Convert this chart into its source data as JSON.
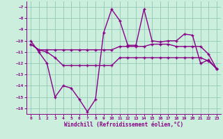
{
  "xlabel": "Windchill (Refroidissement éolien,°C)",
  "x": [
    0,
    1,
    2,
    3,
    4,
    5,
    6,
    7,
    8,
    9,
    10,
    11,
    12,
    13,
    14,
    15,
    16,
    17,
    18,
    19,
    20,
    21,
    22,
    23
  ],
  "line1": [
    -10,
    -11,
    -12,
    -15,
    -14,
    -14.2,
    -15.2,
    -16.3,
    -15.2,
    -9.3,
    -7.2,
    -8.2,
    -10.4,
    -10.4,
    -7.2,
    -10.0,
    -10.1,
    -10.0,
    -10.0,
    -9.4,
    -9.5,
    -12.0,
    -11.7,
    -12.5
  ],
  "line2": [
    -10.3,
    -10.8,
    -10.8,
    -10.8,
    -10.8,
    -10.8,
    -10.8,
    -10.8,
    -10.8,
    -10.8,
    -10.8,
    -10.5,
    -10.5,
    -10.5,
    -10.5,
    -10.3,
    -10.3,
    -10.3,
    -10.5,
    -10.5,
    -10.5,
    -10.5,
    -11.2,
    -12.5
  ],
  "line3": [
    -10.3,
    -10.8,
    -11.0,
    -11.5,
    -12.2,
    -12.2,
    -12.2,
    -12.2,
    -12.2,
    -12.2,
    -12.2,
    -11.5,
    -11.5,
    -11.5,
    -11.5,
    -11.5,
    -11.5,
    -11.5,
    -11.5,
    -11.5,
    -11.5,
    -11.5,
    -11.8,
    -12.5
  ],
  "line_color1": "#880088",
  "line_color2": "#880088",
  "line_color3": "#880088",
  "bg_color": "#cceedd",
  "grid_color": "#99ccbb",
  "ylim": [
    -16.5,
    -6.5
  ],
  "xlim": [
    -0.5,
    23.5
  ],
  "yticks": [
    -7,
    -8,
    -9,
    -10,
    -11,
    -12,
    -13,
    -14,
    -15,
    -16
  ],
  "xticks": [
    0,
    1,
    2,
    3,
    4,
    5,
    6,
    7,
    8,
    9,
    10,
    11,
    12,
    13,
    14,
    15,
    16,
    17,
    18,
    19,
    20,
    21,
    22,
    23
  ]
}
